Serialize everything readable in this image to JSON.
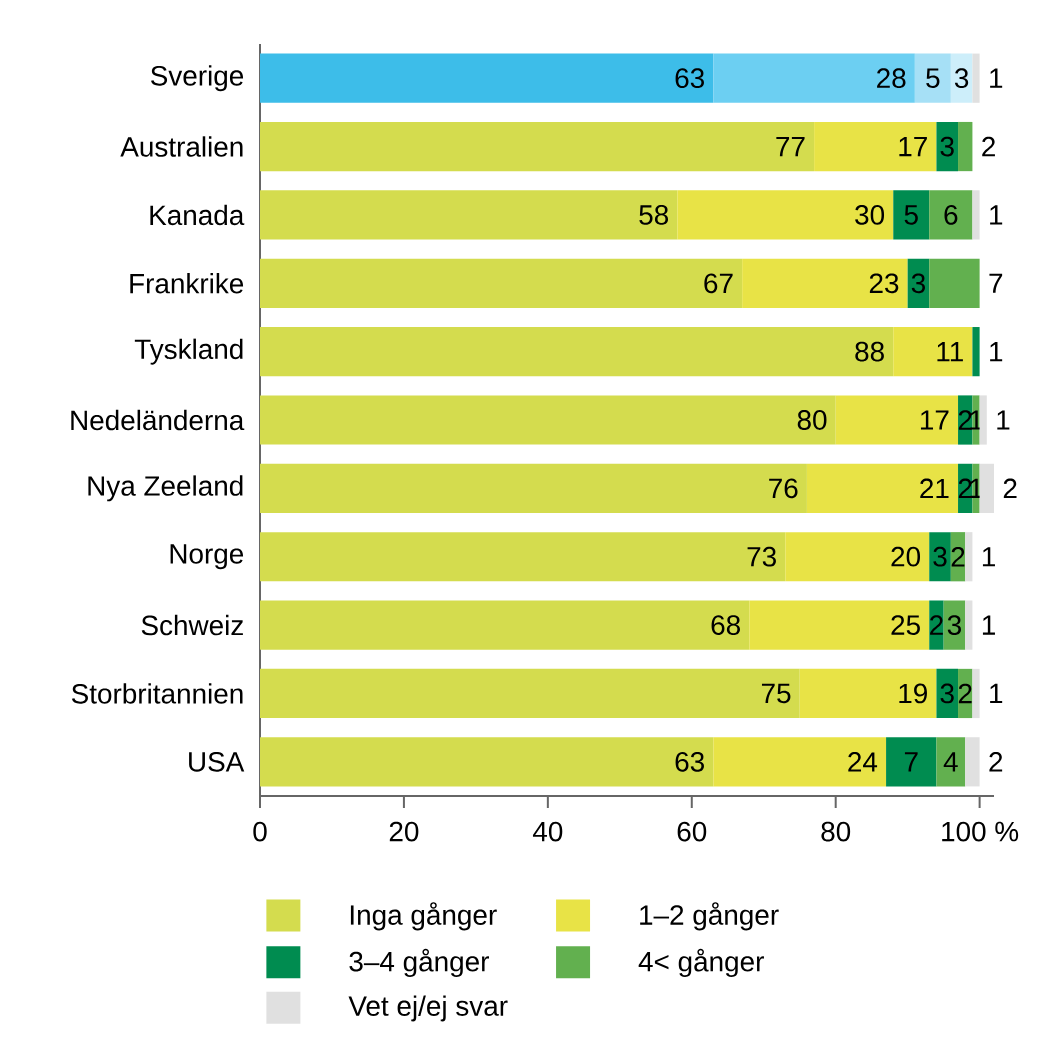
{
  "chart_data": {
    "type": "bar",
    "orientation": "horizontal",
    "stacked": true,
    "data_labels": true,
    "legend": "bottom",
    "categories": [
      "Sverige",
      "Australien",
      "Kanada",
      "Frankrike",
      "Tyskland",
      "Nedeländerna",
      "Nya Zeeland",
      "Norge",
      "Schweiz",
      "Storbritannien",
      "USA"
    ],
    "series": [
      {
        "name": "Inga gånger",
        "color": "#d4dc4e",
        "colors": [
          "#3dbde9",
          "#d4dc4e",
          "#d4dc4e",
          "#d4dc4e",
          "#d4dc4e",
          "#d4dc4e",
          "#d4dc4e",
          "#d4dc4e",
          "#d4dc4e",
          "#d4dc4e",
          "#d4dc4e"
        ],
        "values": [
          63,
          77,
          58,
          67,
          88,
          80,
          76,
          73,
          68,
          75,
          63
        ]
      },
      {
        "name": "1–2 gånger",
        "color": "#e8e346",
        "colors": [
          "#6ccff2",
          "#e8e346",
          "#e8e346",
          "#e8e346",
          "#e8e346",
          "#e8e346",
          "#e8e346",
          "#e8e346",
          "#e8e346",
          "#e8e346",
          "#e8e346"
        ],
        "values": [
          28,
          17,
          30,
          23,
          11,
          17,
          21,
          20,
          25,
          19,
          24
        ]
      },
      {
        "name": "3–4 gånger",
        "color": "#008c50",
        "colors": [
          "#a6e0f6",
          "#008c50",
          "#008c50",
          "#008c50",
          "#008c50",
          "#008c50",
          "#008c50",
          "#008c50",
          "#008c50",
          "#008c50",
          "#008c50"
        ],
        "values": [
          5,
          3,
          5,
          3,
          1,
          2,
          2,
          3,
          2,
          3,
          7
        ]
      },
      {
        "name": "4< gånger",
        "color": "#62b04f",
        "colors": [
          "#cdeefa",
          "#62b04f",
          "#62b04f",
          "#62b04f",
          "#62b04f",
          "#62b04f",
          "#62b04f",
          "#62b04f",
          "#62b04f",
          "#62b04f",
          "#62b04f"
        ],
        "values": [
          3,
          2,
          6,
          7,
          null,
          1,
          1,
          2,
          3,
          2,
          4
        ]
      },
      {
        "name": "Vet ej/ej svar",
        "color": "#e0e0e0",
        "colors": [
          "#e0e0e0",
          "#e0e0e0",
          "#e0e0e0",
          "#e0e0e0",
          "#e0e0e0",
          "#e0e0e0",
          "#e0e0e0",
          "#e0e0e0",
          "#e0e0e0",
          "#e0e0e0",
          "#e0e0e0"
        ],
        "values": [
          1,
          null,
          1,
          null,
          null,
          1,
          2,
          1,
          1,
          1,
          2
        ]
      }
    ],
    "xlim": [
      0,
      102
    ],
    "xticks": [
      0,
      20,
      40,
      60,
      80,
      {
        "value": 100,
        "label": "100 %"
      }
    ]
  }
}
